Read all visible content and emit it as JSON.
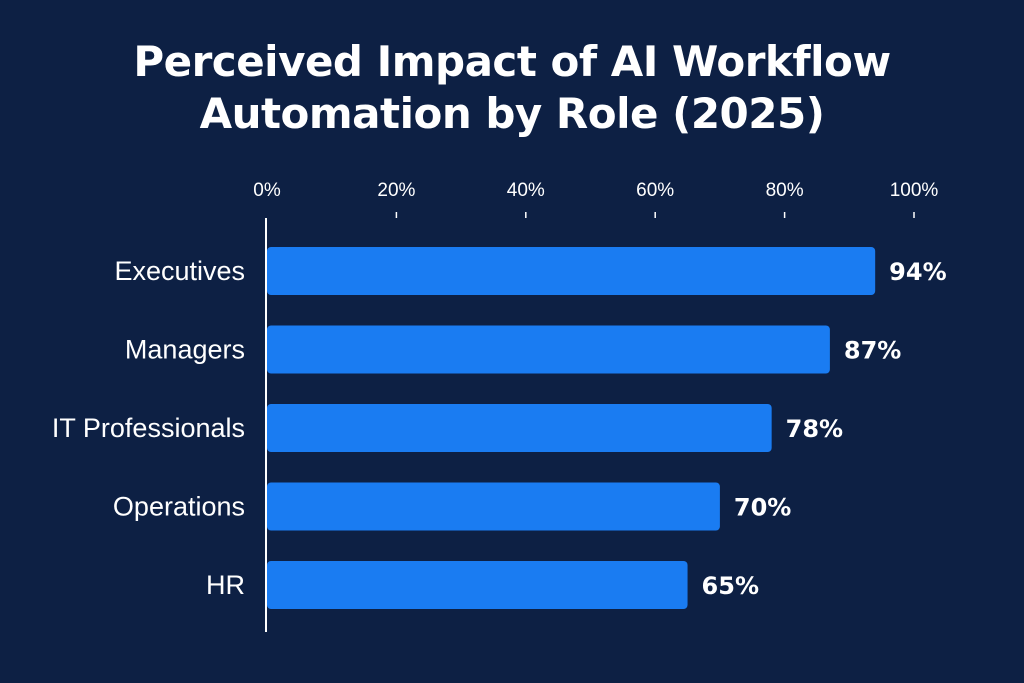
{
  "chart_data": {
    "type": "bar",
    "orientation": "horizontal",
    "title_lines": [
      "Perceived Impact of AI Workflow",
      "Automation by Role (2025)"
    ],
    "categories": [
      "Executives",
      "Managers",
      "IT Professionals",
      "Operations",
      "HR"
    ],
    "values": [
      94,
      87,
      78,
      70,
      65
    ],
    "value_labels": [
      "94%",
      "87%",
      "78%",
      "70%",
      "65%"
    ],
    "xlim": [
      0,
      100
    ],
    "xticks": [
      0,
      20,
      40,
      60,
      80,
      100
    ],
    "xtick_labels": [
      "0%",
      "20%",
      "40%",
      "60%",
      "80%",
      "100%"
    ],
    "xaxis_position": "top",
    "grid": false,
    "bar_color": "#1a7cf2",
    "background_color": "#0d2044"
  }
}
